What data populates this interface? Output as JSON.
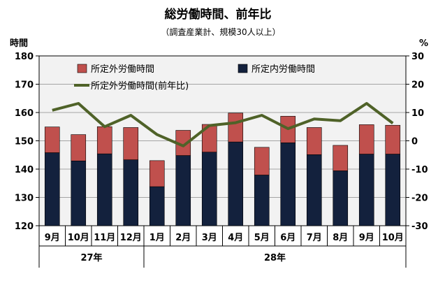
{
  "chart_data": {
    "type": "bar",
    "title": "総労働時間、前年比",
    "subtitle": "（調査産業計、規模30人以上）",
    "y_left_label": "時間",
    "y_right_label": "%",
    "y_left_ylim": [
      120,
      180
    ],
    "y_left_ticks": [
      "120",
      "130",
      "140",
      "150",
      "160",
      "170",
      "180"
    ],
    "y_right_ylim": [
      -30,
      30
    ],
    "y_right_ticks": [
      "-30",
      "-20",
      "-10",
      "0",
      "10",
      "20",
      "30"
    ],
    "grid": true,
    "legend_placement": "top",
    "categories": [
      "9月",
      "10月",
      "11月",
      "12月",
      "1月",
      "2月",
      "3月",
      "4月",
      "5月",
      "6月",
      "7月",
      "8月",
      "9月",
      "10月"
    ],
    "year_groups": [
      {
        "label": "27年",
        "start": 0,
        "end": 3
      },
      {
        "label": "28年",
        "start": 4,
        "end": 13
      }
    ],
    "series": [
      {
        "name": "所定内労働時間",
        "kind": "stacked-bar-base",
        "color": "#13213d",
        "values": [
          145.8,
          142.9,
          145.4,
          143.3,
          133.8,
          144.8,
          146.0,
          149.6,
          137.9,
          149.3,
          145.1,
          139.4,
          145.3,
          145.3
        ]
      },
      {
        "name": "所定外労働時間",
        "kind": "stacked-bar-top",
        "color": "#c0504d",
        "values": [
          9.1,
          9.3,
          9.6,
          11.4,
          9.2,
          8.9,
          9.8,
          10.2,
          9.8,
          9.4,
          9.6,
          9.0,
          10.4,
          10.2
        ]
      },
      {
        "name": "所定外労働時間(前年比)",
        "kind": "line",
        "axis": "right",
        "color": "#4f6228",
        "values": [
          10.8,
          13.2,
          5.0,
          9.0,
          2.2,
          -1.8,
          5.4,
          6.4,
          9.0,
          4.3,
          7.7,
          7.1,
          13.2,
          6.2
        ]
      }
    ]
  }
}
